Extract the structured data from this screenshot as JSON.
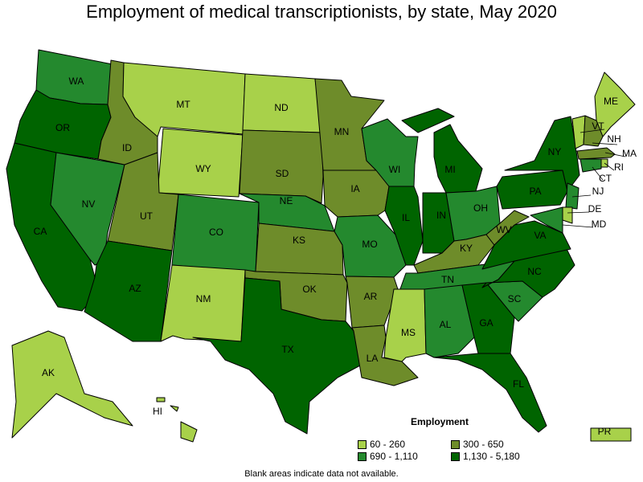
{
  "title": "Employment of medical transcriptionists, by state, May 2020",
  "colors": {
    "level1": "#a8d14a",
    "level2": "#6e8c2a",
    "level3": "#24892e",
    "level4": "#006400"
  },
  "legend": {
    "title": "Employment",
    "items": [
      {
        "label": "60 - 260",
        "level": 1
      },
      {
        "label": "300 - 650",
        "level": 2
      },
      {
        "label": "690 - 1,110",
        "level": 3
      },
      {
        "label": "1,130 - 5,180",
        "level": 4
      }
    ]
  },
  "note": "Blank areas indicate data not available.",
  "states": {
    "WA": 3,
    "OR": 4,
    "CA": 4,
    "NV": 3,
    "ID": 2,
    "MT": 1,
    "WY": 1,
    "UT": 2,
    "AZ": 4,
    "CO": 3,
    "NM": 1,
    "ND": 1,
    "SD": 2,
    "NE": 3,
    "KS": 2,
    "OK": 2,
    "TX": 4,
    "MN": 2,
    "IA": 2,
    "MO": 3,
    "AR": 2,
    "LA": 2,
    "WI": 3,
    "IL": 4,
    "MI": 4,
    "IN": 4,
    "OH": 3,
    "KY": 2,
    "TN": 3,
    "MS": 1,
    "AL": 3,
    "GA": 4,
    "FL": 4,
    "SC": 3,
    "NC": 4,
    "VA": 4,
    "WV": 2,
    "PA": 4,
    "NY": 4,
    "ME": 1,
    "VT": 1,
    "NH": 2,
    "MA": 2,
    "RI": 1,
    "CT": 3,
    "NJ": 3,
    "DE": 1,
    "MD": 3,
    "AK": 1,
    "HI": 1,
    "PR": 1
  }
}
